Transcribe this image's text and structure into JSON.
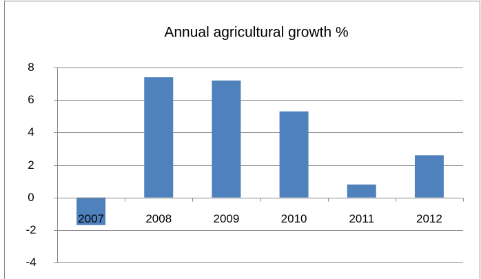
{
  "chart_data": {
    "type": "bar",
    "title": "Annual agricultural growth %",
    "categories": [
      "2007",
      "2008",
      "2009",
      "2010",
      "2011",
      "2012"
    ],
    "values": [
      -1.7,
      7.4,
      7.2,
      5.3,
      0.8,
      2.6
    ],
    "color": "#4f81bd",
    "ylim": [
      -4,
      8
    ],
    "yticks": [
      -4,
      -2,
      0,
      2,
      4,
      6,
      8
    ],
    "grid": true
  }
}
